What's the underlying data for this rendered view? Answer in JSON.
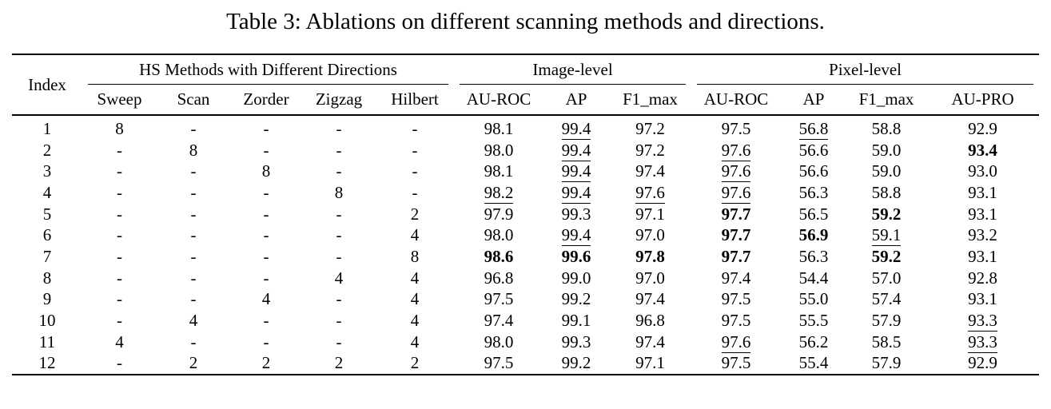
{
  "title": "Table 3: Ablations on different scanning methods and directions.",
  "table": {
    "index_header": "Index",
    "group_headers": [
      {
        "label": "HS Methods with Different Directions",
        "span": 5
      },
      {
        "label": "Image-level",
        "span": 3
      },
      {
        "label": "Pixel-level",
        "span": 4
      }
    ],
    "columns": [
      "Sweep",
      "Scan",
      "Zorder",
      "Zigzag",
      "Hilbert",
      "AU-ROC",
      "AP",
      "F1_max",
      "AU-ROC",
      "AP",
      "F1_max",
      "AU-PRO"
    ],
    "style_legend": {
      "b": "bold (best)",
      "u": "underline (second best)"
    },
    "rows": [
      {
        "index": "1",
        "cells": [
          [
            "8",
            ""
          ],
          [
            "-",
            ""
          ],
          [
            "-",
            ""
          ],
          [
            "-",
            ""
          ],
          [
            "-",
            ""
          ],
          [
            "98.1",
            ""
          ],
          [
            "99.4",
            "u"
          ],
          [
            "97.2",
            ""
          ],
          [
            "97.5",
            ""
          ],
          [
            "56.8",
            "u"
          ],
          [
            "58.8",
            ""
          ],
          [
            "92.9",
            ""
          ]
        ]
      },
      {
        "index": "2",
        "cells": [
          [
            "-",
            ""
          ],
          [
            "8",
            ""
          ],
          [
            "-",
            ""
          ],
          [
            "-",
            ""
          ],
          [
            "-",
            ""
          ],
          [
            "98.0",
            ""
          ],
          [
            "99.4",
            "u"
          ],
          [
            "97.2",
            ""
          ],
          [
            "97.6",
            "u"
          ],
          [
            "56.6",
            ""
          ],
          [
            "59.0",
            ""
          ],
          [
            "93.4",
            "b"
          ]
        ]
      },
      {
        "index": "3",
        "cells": [
          [
            "-",
            ""
          ],
          [
            "-",
            ""
          ],
          [
            "8",
            ""
          ],
          [
            "-",
            ""
          ],
          [
            "-",
            ""
          ],
          [
            "98.1",
            ""
          ],
          [
            "99.4",
            "u"
          ],
          [
            "97.4",
            ""
          ],
          [
            "97.6",
            "u"
          ],
          [
            "56.6",
            ""
          ],
          [
            "59.0",
            ""
          ],
          [
            "93.0",
            ""
          ]
        ]
      },
      {
        "index": "4",
        "cells": [
          [
            "-",
            ""
          ],
          [
            "-",
            ""
          ],
          [
            "-",
            ""
          ],
          [
            "8",
            ""
          ],
          [
            "-",
            ""
          ],
          [
            "98.2",
            "u"
          ],
          [
            "99.4",
            "u"
          ],
          [
            "97.6",
            "u"
          ],
          [
            "97.6",
            "u"
          ],
          [
            "56.3",
            ""
          ],
          [
            "58.8",
            ""
          ],
          [
            "93.1",
            ""
          ]
        ]
      },
      {
        "index": "5",
        "cells": [
          [
            "-",
            ""
          ],
          [
            "-",
            ""
          ],
          [
            "-",
            ""
          ],
          [
            "-",
            ""
          ],
          [
            "2",
            ""
          ],
          [
            "97.9",
            ""
          ],
          [
            "99.3",
            ""
          ],
          [
            "97.1",
            ""
          ],
          [
            "97.7",
            "b"
          ],
          [
            "56.5",
            ""
          ],
          [
            "59.2",
            "b"
          ],
          [
            "93.1",
            ""
          ]
        ]
      },
      {
        "index": "6",
        "cells": [
          [
            "-",
            ""
          ],
          [
            "-",
            ""
          ],
          [
            "-",
            ""
          ],
          [
            "-",
            ""
          ],
          [
            "4",
            ""
          ],
          [
            "98.0",
            ""
          ],
          [
            "99.4",
            "u"
          ],
          [
            "97.0",
            ""
          ],
          [
            "97.7",
            "b"
          ],
          [
            "56.9",
            "b"
          ],
          [
            "59.1",
            "u"
          ],
          [
            "93.2",
            ""
          ]
        ]
      },
      {
        "index": "7",
        "cells": [
          [
            "-",
            ""
          ],
          [
            "-",
            ""
          ],
          [
            "-",
            ""
          ],
          [
            "-",
            ""
          ],
          [
            "8",
            ""
          ],
          [
            "98.6",
            "b"
          ],
          [
            "99.6",
            "b"
          ],
          [
            "97.8",
            "b"
          ],
          [
            "97.7",
            "b"
          ],
          [
            "56.3",
            ""
          ],
          [
            "59.2",
            "b"
          ],
          [
            "93.1",
            ""
          ]
        ]
      },
      {
        "index": "8",
        "cells": [
          [
            "-",
            ""
          ],
          [
            "-",
            ""
          ],
          [
            "-",
            ""
          ],
          [
            "4",
            ""
          ],
          [
            "4",
            ""
          ],
          [
            "96.8",
            ""
          ],
          [
            "99.0",
            ""
          ],
          [
            "97.0",
            ""
          ],
          [
            "97.4",
            ""
          ],
          [
            "54.4",
            ""
          ],
          [
            "57.0",
            ""
          ],
          [
            "92.8",
            ""
          ]
        ]
      },
      {
        "index": "9",
        "cells": [
          [
            "-",
            ""
          ],
          [
            "-",
            ""
          ],
          [
            "4",
            ""
          ],
          [
            "-",
            ""
          ],
          [
            "4",
            ""
          ],
          [
            "97.5",
            ""
          ],
          [
            "99.2",
            ""
          ],
          [
            "97.4",
            ""
          ],
          [
            "97.5",
            ""
          ],
          [
            "55.0",
            ""
          ],
          [
            "57.4",
            ""
          ],
          [
            "93.1",
            ""
          ]
        ]
      },
      {
        "index": "10",
        "cells": [
          [
            "-",
            ""
          ],
          [
            "4",
            ""
          ],
          [
            "-",
            ""
          ],
          [
            "-",
            ""
          ],
          [
            "4",
            ""
          ],
          [
            "97.4",
            ""
          ],
          [
            "99.1",
            ""
          ],
          [
            "96.8",
            ""
          ],
          [
            "97.5",
            ""
          ],
          [
            "55.5",
            ""
          ],
          [
            "57.9",
            ""
          ],
          [
            "93.3",
            "u"
          ]
        ]
      },
      {
        "index": "11",
        "cells": [
          [
            "4",
            ""
          ],
          [
            "-",
            ""
          ],
          [
            "-",
            ""
          ],
          [
            "-",
            ""
          ],
          [
            "4",
            ""
          ],
          [
            "98.0",
            ""
          ],
          [
            "99.3",
            ""
          ],
          [
            "97.4",
            ""
          ],
          [
            "97.6",
            "u"
          ],
          [
            "56.2",
            ""
          ],
          [
            "58.5",
            ""
          ],
          [
            "93.3",
            "u"
          ]
        ]
      },
      {
        "index": "12",
        "cells": [
          [
            "-",
            ""
          ],
          [
            "2",
            ""
          ],
          [
            "2",
            ""
          ],
          [
            "2",
            ""
          ],
          [
            "2",
            ""
          ],
          [
            "97.5",
            ""
          ],
          [
            "99.2",
            ""
          ],
          [
            "97.1",
            ""
          ],
          [
            "97.5",
            ""
          ],
          [
            "55.4",
            ""
          ],
          [
            "57.9",
            ""
          ],
          [
            "92.9",
            ""
          ]
        ]
      }
    ]
  }
}
